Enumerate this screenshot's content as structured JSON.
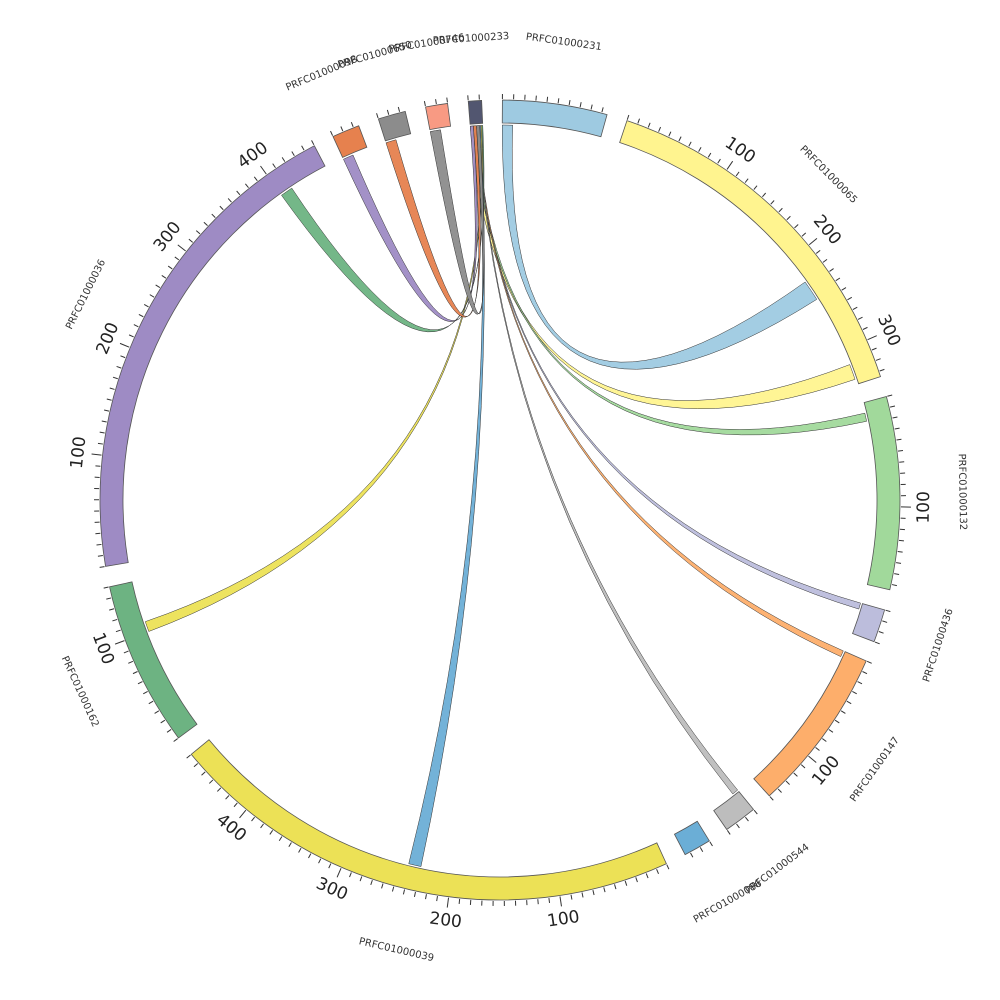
{
  "chart_data": {
    "type": "chord",
    "segments": [
      {
        "name": "PRFC01000231",
        "length": 95,
        "color": "#9ecae1"
      },
      {
        "name": "PRFC01000065",
        "length": 335,
        "color": "#fff48f"
      },
      {
        "name": "PRFC01000132",
        "length": 175,
        "color": "#a1d99b"
      },
      {
        "name": "PRFC01000436",
        "length": 30,
        "color": "#bcbddc"
      },
      {
        "name": "PRFC01000147",
        "length": 150,
        "color": "#fdae6b"
      },
      {
        "name": "PRFC01000544",
        "length": 30,
        "color": "#bdbdbd"
      },
      {
        "name": "PRFC01000086",
        "length": 25,
        "color": "#6baed6"
      },
      {
        "name": "PRFC01000039",
        "length": 470,
        "color": "#ece156"
      },
      {
        "name": "PRFC01000162",
        "length": 150,
        "color": "#6db382"
      },
      {
        "name": "PRFC01000036",
        "length": 450,
        "color": "#9e8bc4"
      },
      {
        "name": "PRFC01000098",
        "length": 25,
        "color": "#e6814e"
      },
      {
        "name": "PRFC01000650",
        "length": 25,
        "color": "#8c8c8c"
      },
      {
        "name": "PRFC01000746",
        "length": 20,
        "color": "#f89a83"
      },
      {
        "name": "PRFC01000233",
        "length": 12,
        "color": "#525670"
      }
    ],
    "links": [
      {
        "source": "PRFC01000231",
        "source_range": [
          0,
          10
        ],
        "target": "PRFC01000065",
        "target_range": [
          225,
          245
        ],
        "color": "#9ecae1"
      },
      {
        "source": "PRFC01000233",
        "source_range": [
          0,
          3
        ],
        "target": "PRFC01000065",
        "target_range": [
          315,
          330
        ],
        "color": "#fff48f"
      },
      {
        "source": "PRFC01000233",
        "source_range": [
          3,
          5
        ],
        "target": "PRFC01000132",
        "target_range": [
          10,
          18
        ],
        "color": "#a1d99b"
      },
      {
        "source": "PRFC01000233",
        "source_range": [
          5,
          6
        ],
        "target": "PRFC01000436",
        "target_range": [
          0,
          6
        ],
        "color": "#bcbddc"
      },
      {
        "source": "PRFC01000233",
        "source_range": [
          6,
          7
        ],
        "target": "PRFC01000147",
        "target_range": [
          0,
          6
        ],
        "color": "#fdae6b"
      },
      {
        "source": "PRFC01000233",
        "source_range": [
          7,
          8
        ],
        "target": "PRFC01000544",
        "target_range": [
          0,
          6
        ],
        "color": "#bdbdbd"
      },
      {
        "source": "PRFC01000233",
        "source_range": [
          8,
          10
        ],
        "target": "PRFC01000039",
        "target_range": [
          230,
          242
        ],
        "color": "#6baed6"
      },
      {
        "source": "PRFC01000233",
        "source_range": [
          10,
          11
        ],
        "target": "PRFC01000162",
        "target_range": [
          100,
          110
        ],
        "color": "#ece156"
      },
      {
        "source": "PRFC01000233",
        "source_range": [
          11,
          12
        ],
        "target": "PRFC01000036",
        "target_range": [
          400,
          412
        ],
        "color": "#6db382"
      },
      {
        "source": "PRFC01000098",
        "source_range": [
          0,
          10
        ],
        "target": "PRFC01000233",
        "target_range": [
          0,
          3
        ],
        "color": "#9e8bc4"
      },
      {
        "source": "PRFC01000650",
        "source_range": [
          0,
          10
        ],
        "target": "PRFC01000233",
        "target_range": [
          3,
          6
        ],
        "color": "#e6814e"
      },
      {
        "source": "PRFC01000746",
        "source_range": [
          0,
          10
        ],
        "target": "PRFC01000233",
        "target_range": [
          6,
          9
        ],
        "color": "#8c8c8c"
      }
    ],
    "ticks": {
      "major_step": 100,
      "minor_step": 10
    }
  }
}
